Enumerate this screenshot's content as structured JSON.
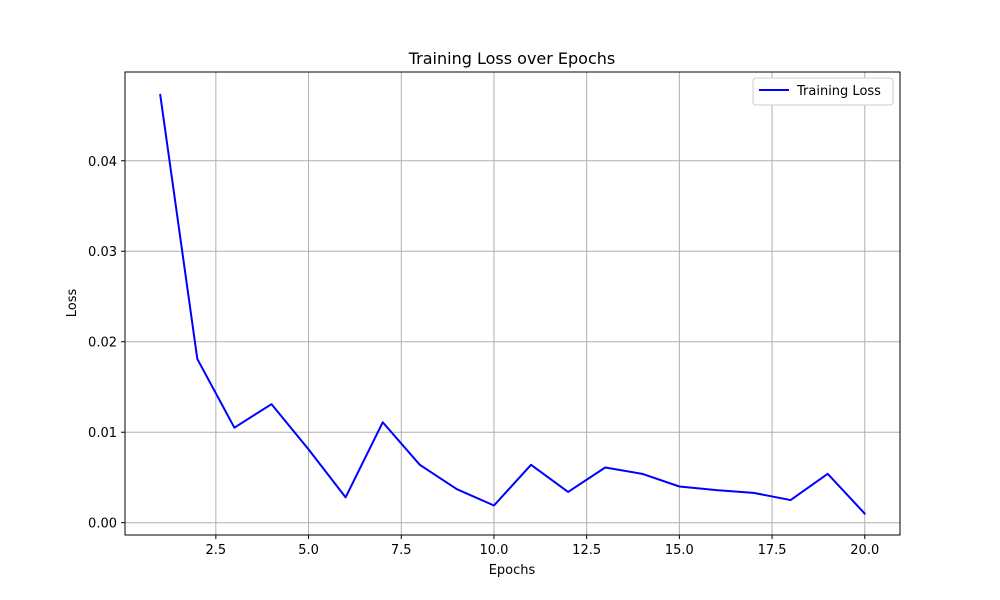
{
  "chart_data": {
    "type": "line",
    "title": "Training Loss over Epochs",
    "xlabel": "Epochs",
    "ylabel": "Loss",
    "xlim": [
      0.05,
      20.95
    ],
    "ylim": [
      -0.00136,
      0.04981
    ],
    "x_ticks": [
      2.5,
      5.0,
      7.5,
      10.0,
      12.5,
      15.0,
      17.5,
      20.0
    ],
    "x_tick_labels": [
      "2.5",
      "5.0",
      "7.5",
      "10.0",
      "12.5",
      "15.0",
      "17.5",
      "20.0"
    ],
    "y_ticks": [
      0.0,
      0.01,
      0.02,
      0.03,
      0.04
    ],
    "y_tick_labels": [
      "0.00",
      "0.01",
      "0.02",
      "0.03",
      "0.04"
    ],
    "grid": true,
    "legend_position": "top-right",
    "series": [
      {
        "name": "Training Loss",
        "color": "#0000ff",
        "x": [
          1,
          2,
          3,
          4,
          5,
          6,
          7,
          8,
          9,
          10,
          11,
          12,
          13,
          14,
          15,
          16,
          17,
          18,
          19,
          20
        ],
        "y": [
          0.0473,
          0.0181,
          0.0105,
          0.0131,
          0.0081,
          0.0028,
          0.0111,
          0.0064,
          0.0037,
          0.0019,
          0.0064,
          0.0034,
          0.0061,
          0.0054,
          0.004,
          0.0036,
          0.0033,
          0.0025,
          0.0054,
          0.001
        ]
      }
    ]
  }
}
